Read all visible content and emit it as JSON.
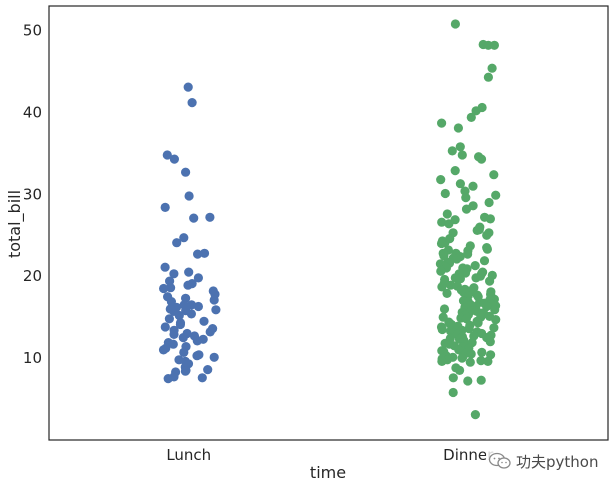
{
  "chart_data": {
    "type": "scatter",
    "subtype": "stripplot",
    "title": "",
    "xlabel": "time",
    "ylabel": "total_bill",
    "categories": [
      "Lunch",
      "Dinner"
    ],
    "ylim": [
      0,
      53
    ],
    "yticks": [
      10,
      20,
      30,
      40,
      50
    ],
    "grid": false,
    "legend": "none",
    "series": [
      {
        "category": "Lunch",
        "color": "#4c72b0",
        "values": [
          43.1,
          41.2,
          34.8,
          34.3,
          32.7,
          29.8,
          28.4,
          27.2,
          27.1,
          24.7,
          24.1,
          22.8,
          22.7,
          21.1,
          20.5,
          20.3,
          19.8,
          19.4,
          19.1,
          18.9,
          18.6,
          18.5,
          18.2,
          17.8,
          17.5,
          17.3,
          17.1,
          16.9,
          16.5,
          16.5,
          16.3,
          16.2,
          16.0,
          15.9,
          15.8,
          15.7,
          15.4,
          15.2,
          14.8,
          14.5,
          14.3,
          14.1,
          13.8,
          13.6,
          13.4,
          13.2,
          13.0,
          12.9,
          12.7,
          12.5,
          12.3,
          12.1,
          11.9,
          11.7,
          11.4,
          11.2,
          11.0,
          10.7,
          10.4,
          10.3,
          10.1,
          9.8,
          9.6,
          9.3,
          8.9,
          8.6,
          8.5,
          8.4,
          8.3,
          7.7,
          7.6,
          7.5
        ]
      },
      {
        "category": "Dinner",
        "color": "#55a868",
        "values": [
          50.8,
          48.3,
          48.2,
          48.2,
          45.4,
          44.3,
          40.6,
          40.2,
          39.4,
          38.7,
          38.1,
          35.8,
          35.3,
          34.8,
          34.6,
          34.3,
          32.9,
          32.4,
          31.8,
          31.3,
          31.0,
          30.4,
          30.1,
          29.9,
          29.6,
          29.0,
          28.6,
          28.2,
          27.6,
          27.2,
          27.0,
          26.9,
          26.6,
          26.4,
          26.0,
          25.7,
          25.6,
          25.3,
          25.3,
          25.0,
          24.6,
          24.3,
          24.1,
          24.0,
          23.7,
          23.5,
          23.3,
          23.2,
          23.1,
          22.8,
          22.8,
          22.7,
          22.5,
          22.4,
          22.2,
          22.1,
          21.9,
          21.7,
          21.6,
          21.5,
          21.3,
          21.2,
          21.0,
          21.0,
          20.9,
          20.7,
          20.6,
          20.5,
          20.4,
          20.3,
          20.3,
          20.1,
          20.0,
          19.8,
          19.8,
          19.7,
          19.6,
          19.4,
          19.2,
          19.1,
          18.9,
          18.8,
          18.7,
          18.6,
          18.4,
          18.3,
          18.2,
          18.1,
          18.0,
          18.0,
          17.9,
          17.8,
          17.7,
          17.6,
          17.5,
          17.5,
          17.3,
          17.2,
          17.1,
          17.0,
          16.9,
          16.8,
          16.7,
          16.6,
          16.5,
          16.4,
          16.3,
          16.3,
          16.2,
          16.0,
          15.9,
          15.8,
          15.7,
          15.6,
          15.5,
          15.4,
          15.3,
          15.2,
          15.1,
          15.0,
          15.0,
          14.9,
          14.8,
          14.7,
          14.5,
          14.4,
          14.3,
          14.2,
          14.1,
          14.0,
          13.9,
          13.8,
          13.7,
          13.6,
          13.5,
          13.4,
          13.3,
          13.2,
          13.1,
          13.0,
          12.9,
          12.8,
          12.7,
          12.6,
          12.5,
          12.4,
          12.3,
          12.2,
          12.0,
          11.9,
          11.8,
          11.7,
          11.6,
          11.5,
          11.4,
          11.2,
          11.0,
          10.9,
          10.8,
          10.7,
          10.6,
          10.5,
          10.4,
          10.3,
          10.2,
          10.1,
          10.0,
          9.9,
          9.8,
          9.7,
          9.6,
          9.6,
          9.5,
          8.8,
          8.5,
          7.6,
          7.3,
          7.2,
          5.8,
          3.1
        ]
      }
    ]
  },
  "watermark": {
    "text": "功夫python",
    "icon": "wechat-icon"
  }
}
